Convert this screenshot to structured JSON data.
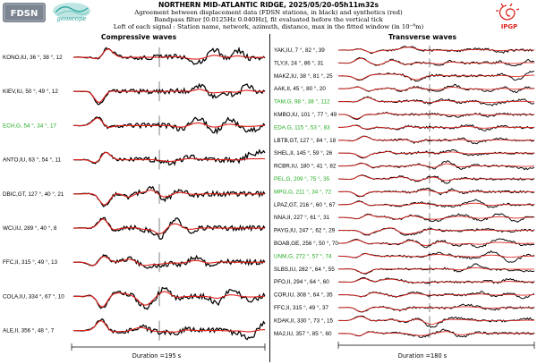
{
  "header": {
    "title": "NORTHERN MID-ATLANTIC RIDGE, 2025/05/20-05h11m32s",
    "line1": "Agreement between displacement data (FDSN stations, in black) and synthetics (red)",
    "line2": "Bandpass filter [0.0125Hz 0.040Hz], fit evaluated before the vertical tick",
    "line3": "Left of each signal : Station name, network, azimuth, distance, max in the fitted window (in 10⁻⁸m)"
  },
  "logos": {
    "fdsn": "FDSN",
    "geoscope": "geoscope",
    "ipgp": "IPGP"
  },
  "colors": {
    "data": "#000000",
    "synthetic": "#e0201b",
    "highlight": "#22aa22",
    "ipgp": "#d9251c",
    "fdsn_bg": "#7b8490",
    "geoscope": "#2fa8a2"
  },
  "chart_data": [
    {
      "type": "line",
      "title": "Compressive waves",
      "duration_label": "Duration =195 s",
      "series": [
        "data",
        "synthetic"
      ],
      "stations": [
        {
          "label": "KONO,IU, 36 °, 38 °, 12",
          "highlight": false
        },
        {
          "label": "KIEV,IU, 50 °, 49 °, 12",
          "highlight": false
        },
        {
          "label": "ECH,G, 54 °, 34 °, 17",
          "highlight": true
        },
        {
          "label": "ANTO,IU, 63 °, 54 °, 11",
          "highlight": false
        },
        {
          "label": "DBIC,GT, 127 °, 40 °, 21",
          "highlight": false
        },
        {
          "label": "WCI,IU, 289 °, 40 °, 8",
          "highlight": false
        },
        {
          "label": "FFC,II, 315 °, 49 °, 13",
          "highlight": false
        },
        {
          "label": "COLA,IU, 334 °, 67 °, 10",
          "highlight": false
        },
        {
          "label": "ALE,II, 356 °, 48 °, 7",
          "highlight": false
        }
      ]
    },
    {
      "type": "line",
      "title": "Transverse waves",
      "duration_label": "Duration =180 s",
      "series": [
        "data",
        "synthetic"
      ],
      "stations": [
        {
          "label": "YAK,IU, 7 °, 82 °, 39",
          "highlight": false
        },
        {
          "label": "TLY,II, 24 °, 86 °, 31",
          "highlight": false
        },
        {
          "label": "MAKZ,IU, 38 °, 81 °, 25",
          "highlight": false
        },
        {
          "label": "AAK,II, 45 °, 80 °, 20",
          "highlight": false
        },
        {
          "label": "TAM,G, 98 °, 38 °, 112",
          "highlight": true
        },
        {
          "label": "KMBO,IU, 101 °, 77 °, 49",
          "highlight": false
        },
        {
          "label": "EDA,G, 115 °, 53 °, 83",
          "highlight": true
        },
        {
          "label": "LBTB,GT, 127 °, 84 °, 18",
          "highlight": false
        },
        {
          "label": "SHEL,II, 145 °, 59 °, 26",
          "highlight": false
        },
        {
          "label": "RCBR,IU, 180 °, 41 °, 82",
          "highlight": false
        },
        {
          "label": "PEL,G, 209 °, 75 °, 35",
          "highlight": true
        },
        {
          "label": "MPG,G, 211 °, 34 °, 72",
          "highlight": true
        },
        {
          "label": "LPAZ,GT, 216 °, 60 °, 67",
          "highlight": false
        },
        {
          "label": "NNA,II, 227 °, 61 °, 31",
          "highlight": false
        },
        {
          "label": "PAYG,IU, 247 °, 62 °, 29",
          "highlight": false
        },
        {
          "label": "BOAB,GE, 256 °, 50 °, 70",
          "highlight": false
        },
        {
          "label": "UNM,G, 272 °, 57 °, 74",
          "highlight": true
        },
        {
          "label": "SLBS,IU, 282 °, 64 °, 55",
          "highlight": false
        },
        {
          "label": "PFO,II, 294 °, 64 °, 60",
          "highlight": false
        },
        {
          "label": "COR,IU, 308 °, 64 °, 35",
          "highlight": false
        },
        {
          "label": "FFC,II, 315 °, 49 °, 37",
          "highlight": false
        },
        {
          "label": "KDAK,II, 330 °, 73 °, 15",
          "highlight": false
        },
        {
          "label": "MA2,IU, 357 °, 85 °, 60",
          "highlight": false
        }
      ]
    }
  ]
}
